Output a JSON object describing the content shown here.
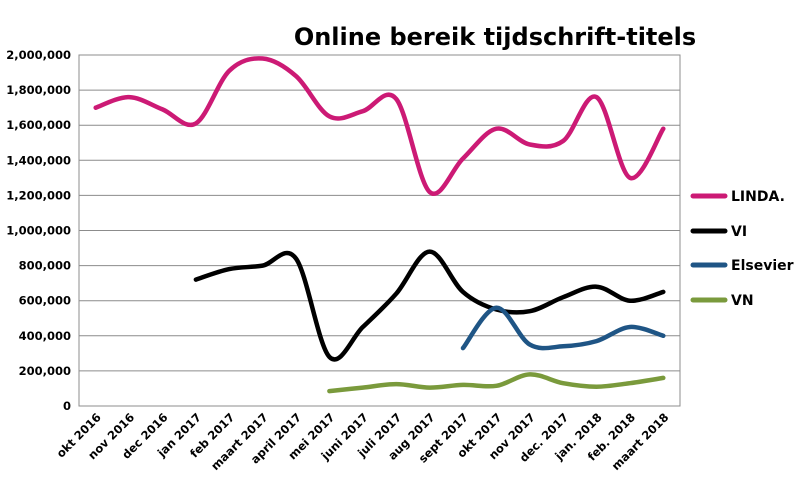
{
  "chart_data": {
    "type": "line",
    "title": "Online bereik tijdschrift-titels",
    "xlabel": "",
    "ylabel": "",
    "ylim": [
      0,
      2000000
    ],
    "yticks": [
      "0",
      "200,000",
      "400,000",
      "600,000",
      "800,000",
      "1,000,000",
      "1,200,000",
      "1,400,000",
      "1,600,000",
      "1,800,000",
      "2,000,000"
    ],
    "ytick_values": [
      0,
      200000,
      400000,
      600000,
      800000,
      1000000,
      1200000,
      1400000,
      1600000,
      1800000,
      2000000
    ],
    "grid": true,
    "legend_position": "right",
    "categories": [
      "okt 2016",
      "nov 2016",
      "dec 2016",
      "jan 2017",
      "feb 2017",
      "maart 2017",
      "april 2017",
      "mei 2017",
      "juni 2017",
      "juli 2017",
      "aug 2017",
      "sept 2017",
      "okt 2017",
      "nov 2017",
      "dec. 2017",
      "jan. 2018",
      "feb. 2018",
      "maart 2018"
    ],
    "series": [
      {
        "name": "LINDA.",
        "color": "#cc1a75",
        "values": [
          1700000,
          1760000,
          1690000,
          1610000,
          1910000,
          1980000,
          1880000,
          1650000,
          1680000,
          1750000,
          1220000,
          1410000,
          1580000,
          1490000,
          1510000,
          1760000,
          1300000,
          1580000
        ]
      },
      {
        "name": "VI",
        "color": "#000000",
        "values": [
          null,
          null,
          null,
          720000,
          780000,
          800000,
          840000,
          280000,
          450000,
          640000,
          880000,
          650000,
          550000,
          540000,
          620000,
          680000,
          600000,
          650000
        ]
      },
      {
        "name": "Elsevier",
        "color": "#1f5585",
        "values": [
          null,
          null,
          null,
          null,
          null,
          null,
          null,
          null,
          null,
          null,
          null,
          330000,
          560000,
          350000,
          340000,
          370000,
          450000,
          400000
        ]
      },
      {
        "name": "VN",
        "color": "#7a9a3c",
        "values": [
          null,
          null,
          null,
          null,
          null,
          null,
          null,
          85000,
          105000,
          125000,
          105000,
          120000,
          115000,
          180000,
          130000,
          110000,
          130000,
          160000
        ]
      }
    ]
  }
}
